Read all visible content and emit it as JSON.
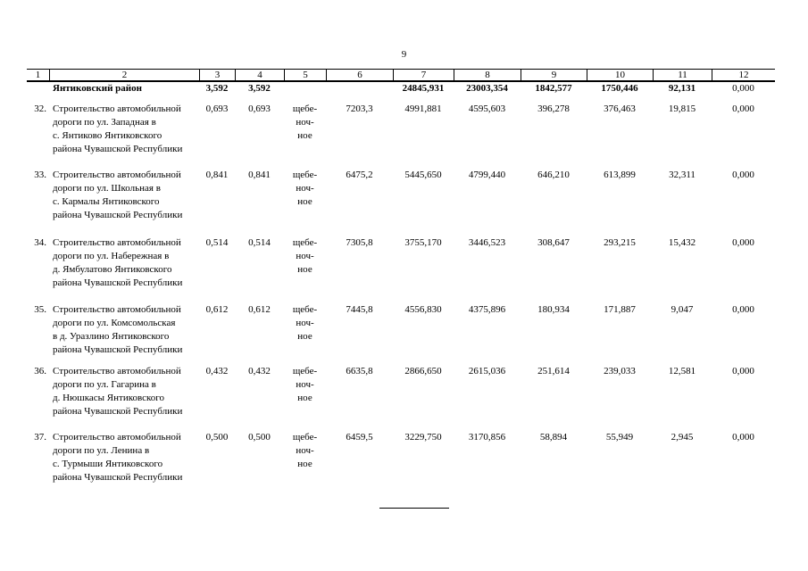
{
  "page_number": "9",
  "header": [
    "1",
    "2",
    "3",
    "4",
    "5",
    "6",
    "7",
    "8",
    "9",
    "10",
    "11",
    "12"
  ],
  "district": {
    "name": "Янтиковский район",
    "c3": "3,592",
    "c4": "3,592",
    "c5": "",
    "c6": "",
    "c7": "24845,931",
    "c8": "23003,354",
    "c9": "1842,577",
    "c10": "1750,446",
    "c11": "92,131",
    "c12": "0,000"
  },
  "rows": [
    {
      "n": "32.",
      "lines": [
        "Строительство автомобильной",
        "дороги по ул. Западная в",
        "с. Янтиково Янтиковского",
        "района Чувашской Республики"
      ],
      "c3": "0,693",
      "c4": "0,693",
      "c5": [
        "щебе-",
        "ноч-",
        "ное"
      ],
      "c6": "7203,3",
      "c7": "4991,881",
      "c8": "4595,603",
      "c9": "396,278",
      "c10": "376,463",
      "c11": "19,815",
      "c12": "0,000"
    },
    {
      "n": "33.",
      "lines": [
        "Строительство автомобильной",
        "дороги по ул. Школьная в",
        "с. Кармалы Янтиковского",
        "района Чувашской Республики"
      ],
      "c3": "0,841",
      "c4": "0,841",
      "c5": [
        "щебе-",
        "ноч-",
        "ное"
      ],
      "c6": "6475,2",
      "c7": "5445,650",
      "c8": "4799,440",
      "c9": "646,210",
      "c10": "613,899",
      "c11": "32,311",
      "c12": "0,000"
    },
    {
      "n": "34.",
      "lines": [
        "Строительство автомобильной",
        "дороги по ул. Набережная в",
        "д. Ямбулатово Янтиковского",
        "района Чувашской Республики"
      ],
      "c3": "0,514",
      "c4": "0,514",
      "c5": [
        "щебе-",
        "ноч-",
        "ное"
      ],
      "c6": "7305,8",
      "c7": "3755,170",
      "c8": "3446,523",
      "c9": "308,647",
      "c10": "293,215",
      "c11": "15,432",
      "c12": "0,000"
    },
    {
      "n": "35.",
      "lines": [
        "Строительство автомобильной",
        "дороги по ул. Комсомольская",
        "в д. Уразлино Янтиковского",
        "района Чувашской Республики"
      ],
      "c3": "0,612",
      "c4": "0,612",
      "c5": [
        "щебе-",
        "ноч-",
        "ное"
      ],
      "c6": "7445,8",
      "c7": "4556,830",
      "c8": "4375,896",
      "c9": "180,934",
      "c10": "171,887",
      "c11": "9,047",
      "c12": "0,000"
    },
    {
      "n": "36.",
      "lines": [
        "Строительство автомобильной",
        "дороги по ул. Гагарина в",
        "д. Нюшкасы Янтиковского",
        "района Чувашской Республики"
      ],
      "c3": "0,432",
      "c4": "0,432",
      "c5": [
        "щебе-",
        "ноч-",
        "ное"
      ],
      "c6": "6635,8",
      "c7": "2866,650",
      "c8": "2615,036",
      "c9": "251,614",
      "c10": "239,033",
      "c11": "12,581",
      "c12": "0,000"
    },
    {
      "n": "37.",
      "lines": [
        "Строительство автомобильной",
        "дороги по ул. Ленина  в",
        "с. Турмыши Янтиковского",
        "района Чувашской Республики"
      ],
      "c3": "0,500",
      "c4": "0,500",
      "c5": [
        "щебе-",
        "ноч-",
        "ное"
      ],
      "c6": "6459,5",
      "c7": "3229,750",
      "c8": "3170,856",
      "c9": "58,894",
      "c10": "55,949",
      "c11": "2,945",
      "c12": "0,000"
    }
  ]
}
